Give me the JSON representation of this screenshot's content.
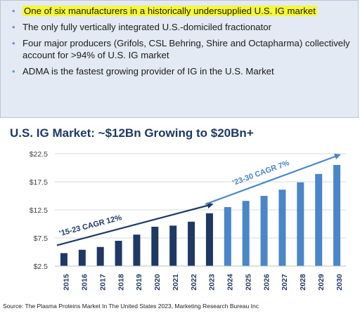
{
  "bullets": [
    {
      "text": "One of six manufacturers in a historically undersupplied U.S. IG market",
      "highlight": true
    },
    {
      "text": "The only fully vertically integrated U.S.-domiciled fractionator",
      "highlight": false
    },
    {
      "text": "Four major producers (Grifols, CSL Behring, Shire and Octapharma) collectively account for >94% of U.S. IG market",
      "highlight": false
    },
    {
      "text": "ADMA is the fastest growing provider of IG in the U.S. Market",
      "highlight": false
    }
  ],
  "chart_data": {
    "type": "bar",
    "title": "U.S. IG Market: ~$12Bn Growing to $20Bn+",
    "xlabel": "",
    "ylabel": "",
    "categories": [
      "2015",
      "2016",
      "2017",
      "2018",
      "2019",
      "2020",
      "2021",
      "2022",
      "2023",
      "2024",
      "2025",
      "2026",
      "2027",
      "2028",
      "2029",
      "2030"
    ],
    "values": [
      4.8,
      5.4,
      5.9,
      7.0,
      8.1,
      9.5,
      9.7,
      10.4,
      11.9,
      13.0,
      14.1,
      15.0,
      16.1,
      17.4,
      18.9,
      20.5
    ],
    "colors": [
      "#1f3864",
      "#1f3864",
      "#1f3864",
      "#1f3864",
      "#1f3864",
      "#1f3864",
      "#1f3864",
      "#1f3864",
      "#1f3864",
      "#4a86c8",
      "#4a86c8",
      "#4a86c8",
      "#4a86c8",
      "#4a86c8",
      "#4a86c8",
      "#4a86c8"
    ],
    "ylim": [
      2.5,
      22.5
    ],
    "yticks": [
      "$22.5",
      "$17.5",
      "$12.5",
      "$7.5",
      "$2.5"
    ],
    "ytick_values": [
      22.5,
      17.5,
      12.5,
      7.5,
      2.5
    ],
    "grid": true,
    "annotations": [
      {
        "text": "'15-23 CAGR 12%",
        "from_index": 0,
        "to_index": 8,
        "from_value": 6.2,
        "to_value": 13.5,
        "color": "#1f3864"
      },
      {
        "text": "'23-30 CAGR 7%",
        "from_index": 8,
        "to_index": 15,
        "from_value": 13.5,
        "to_value": 22.3,
        "color": "#4a86c8"
      }
    ]
  },
  "source": "Source: The Plasma Proteins Market In The United States 2023, Marketing Research Bureau Inc"
}
